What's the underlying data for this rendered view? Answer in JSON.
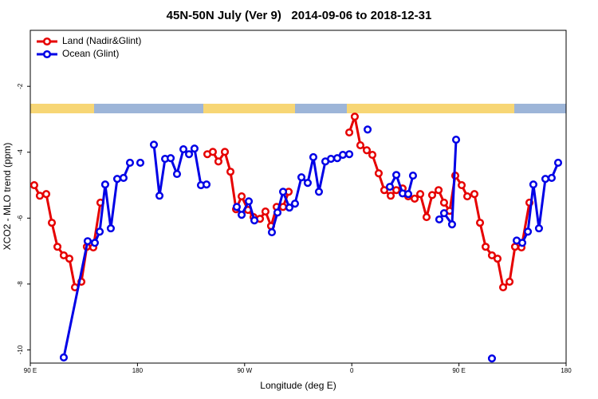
{
  "chart_data": {
    "type": "line",
    "title": "45N-50N July (Ver 9)   2014-09-06 to 2018-12-31",
    "x_label": "Longitude (deg E)",
    "y_label": "XCO2 - MLO trend (ppm)",
    "xlim": [
      90,
      540
    ],
    "xticks": [
      {
        "value": 90,
        "label": "90 E"
      },
      {
        "value": 180,
        "label": "180"
      },
      {
        "value": 270,
        "label": "90 W"
      },
      {
        "value": 360,
        "label": "0"
      },
      {
        "value": 450,
        "label": "90 E"
      },
      {
        "value": 540,
        "label": "180"
      }
    ],
    "ylim": [
      -10.4,
      -0.3
    ],
    "yticks": [
      -10,
      -8,
      -6,
      -4,
      -2
    ],
    "grid": false,
    "legend": "top-left",
    "series": [
      {
        "name": "Land (Nadir&Glint)",
        "color": "#e60000",
        "x": [
          93.3,
          98.0,
          103.4,
          108.1,
          112.8,
          118.1,
          122.8,
          127.5,
          132.9,
          137.5,
          142.9,
          148.9,
          null,
          238.7,
          243.3,
          248.0,
          253.4,
          258.1,
          262.8,
          267.5,
          272.8,
          277.5,
          282.9,
          287.5,
          292.2,
          296.9,
          302.3,
          307.0,
          null,
          357.9,
          362.5,
          367.2,
          372.6,
          377.3,
          382.6,
          387.3,
          392.7,
          397.4,
          402.7,
          407.4,
          412.8,
          417.5,
          422.8,
          427.5,
          432.9,
          437.5,
          442.2,
          446.9,
          452.3,
          457.0,
          463.0,
          467.7,
          472.4,
          477.7,
          482.4,
          487.1,
          492.5,
          497.1,
          502.5,
          509.2
        ],
        "values": [
          -5.0,
          -5.32,
          -5.27,
          -6.14,
          -6.87,
          -7.13,
          -7.23,
          -8.1,
          -7.93,
          -6.87,
          -6.89,
          -5.53,
          null,
          -4.06,
          -3.99,
          -4.28,
          -3.99,
          -4.59,
          -5.73,
          -5.34,
          -5.75,
          -5.97,
          -6.02,
          -5.8,
          -6.24,
          -5.66,
          -5.66,
          -5.2,
          null,
          -3.4,
          -2.92,
          -3.79,
          -3.94,
          -4.08,
          -4.64,
          -5.15,
          -5.32,
          -5.15,
          -5.1,
          -5.34,
          -5.41,
          -5.27,
          -5.97,
          -5.3,
          -5.15,
          -5.53,
          -5.78,
          -4.71,
          -5.0,
          -5.34,
          -5.27,
          -6.14,
          -6.87,
          -7.13,
          -7.23,
          -8.1,
          -7.93,
          -6.87,
          -6.89,
          -5.53
        ]
      },
      {
        "name": "Ocean (Glint)",
        "color": "#0000e6",
        "x": [
          118.1,
          138.2,
          144.2,
          148.3,
          152.9,
          157.6,
          163.0,
          168.3,
          173.7,
          null,
          182.4,
          null,
          193.8,
          198.5,
          203.2,
          207.9,
          213.2,
          218.6,
          223.3,
          227.9,
          233.3,
          238.0,
          null,
          263.4,
          267.5,
          273.5,
          278.2,
          null,
          292.9,
          297.6,
          302.3,
          307.6,
          312.3,
          317.7,
          323.0,
          327.7,
          332.4,
          337.8,
          342.5,
          347.8,
          352.5,
          357.9,
          null,
          373.3,
          null,
          392.0,
          397.4,
          402.7,
          407.4,
          411.4,
          null,
          433.5,
          437.5,
          444.2,
          447.6,
          null,
          477.7,
          null,
          498.5,
          503.2,
          507.9,
          512.5,
          517.2,
          522.6,
          527.9,
          533.3
        ],
        "values": [
          -10.23,
          -6.7,
          -6.75,
          -6.41,
          -4.98,
          -6.31,
          -4.81,
          -4.78,
          -4.32,
          null,
          -4.32,
          null,
          -3.77,
          -5.32,
          -4.2,
          -4.18,
          -4.66,
          -3.91,
          -4.06,
          -3.89,
          -5.0,
          -4.98,
          null,
          -5.66,
          -5.9,
          -5.49,
          -6.07,
          null,
          -6.43,
          -5.83,
          -5.2,
          -5.68,
          -5.56,
          -4.76,
          -4.93,
          -4.15,
          -5.2,
          -4.28,
          -4.2,
          -4.18,
          -4.08,
          -4.06,
          null,
          -3.31,
          null,
          -5.05,
          -4.69,
          -5.25,
          -5.27,
          -4.71,
          null,
          -6.04,
          -5.85,
          -6.19,
          -3.62,
          null,
          -10.26,
          null,
          -6.68,
          -6.75,
          -6.41,
          -4.98,
          -6.31,
          -4.81,
          -4.78,
          -4.32
        ]
      }
    ]
  }
}
